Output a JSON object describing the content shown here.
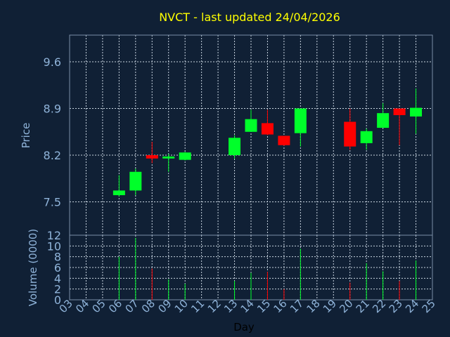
{
  "chart_data": [
    {
      "type": "candlestick",
      "title": "NVCT - last updated 24/04/2026",
      "ylabel": "Price",
      "y_ticks": [
        "7.5",
        "8.2",
        "8.9",
        "9.6"
      ],
      "ylim": [
        7.0,
        10.0
      ],
      "grid": true,
      "up_color": "#00ff2a",
      "down_color": "#ff0000",
      "candles": [
        {
          "day": "06",
          "open": 7.6,
          "high": 7.9,
          "low": 7.58,
          "close": 7.67
        },
        {
          "day": "07",
          "open": 7.67,
          "high": 8.0,
          "low": 7.6,
          "close": 7.95
        },
        {
          "day": "08",
          "open": 8.2,
          "high": 8.4,
          "low": 8.08,
          "close": 8.15
        },
        {
          "day": "09",
          "open": 8.15,
          "high": 8.22,
          "low": 7.95,
          "close": 8.18
        },
        {
          "day": "10",
          "open": 8.13,
          "high": 8.25,
          "low": 8.12,
          "close": 8.24
        },
        {
          "day": "13",
          "open": 8.2,
          "high": 8.5,
          "low": 8.15,
          "close": 8.46
        },
        {
          "day": "14",
          "open": 8.55,
          "high": 8.88,
          "low": 8.55,
          "close": 8.74
        },
        {
          "day": "15",
          "open": 8.68,
          "high": 8.88,
          "low": 8.5,
          "close": 8.51
        },
        {
          "day": "16",
          "open": 8.49,
          "high": 8.49,
          "low": 8.34,
          "close": 8.35
        },
        {
          "day": "17",
          "open": 8.53,
          "high": 8.9,
          "low": 8.33,
          "close": 8.9
        },
        {
          "day": "20",
          "open": 8.7,
          "high": 8.9,
          "low": 8.28,
          "close": 8.33
        },
        {
          "day": "21",
          "open": 8.38,
          "high": 8.6,
          "low": 8.28,
          "close": 8.56
        },
        {
          "day": "22",
          "open": 8.61,
          "high": 8.98,
          "low": 8.61,
          "close": 8.83
        },
        {
          "day": "23",
          "open": 8.9,
          "high": 8.9,
          "low": 8.35,
          "close": 8.8
        },
        {
          "day": "24",
          "open": 8.78,
          "high": 9.2,
          "low": 8.52,
          "close": 8.91
        }
      ]
    },
    {
      "type": "bar",
      "ylabel": "Volume (0000)",
      "xlabel": "Day",
      "y_ticks": [
        "0",
        "2",
        "4",
        "6",
        "8",
        "10",
        "12"
      ],
      "ylim": [
        0,
        12
      ],
      "x_ticks": [
        "03",
        "04",
        "05",
        "06",
        "07",
        "08",
        "09",
        "10",
        "11",
        "12",
        "13",
        "14",
        "15",
        "16",
        "17",
        "18",
        "19",
        "20",
        "21",
        "22",
        "23",
        "24",
        "25"
      ],
      "categories": [
        "06",
        "07",
        "08",
        "09",
        "10",
        "13",
        "14",
        "15",
        "16",
        "17",
        "20",
        "21",
        "22",
        "23",
        "24"
      ],
      "values": [
        8.0,
        11.5,
        5.8,
        3.8,
        3.0,
        3.5,
        5.0,
        5.2,
        2.0,
        9.5,
        3.2,
        6.8,
        5.3,
        3.5,
        7.3
      ],
      "direction": [
        "up",
        "up",
        "down",
        "up",
        "up",
        "up",
        "up",
        "down",
        "down",
        "up",
        "down",
        "up",
        "up",
        "down",
        "up"
      ]
    }
  ]
}
